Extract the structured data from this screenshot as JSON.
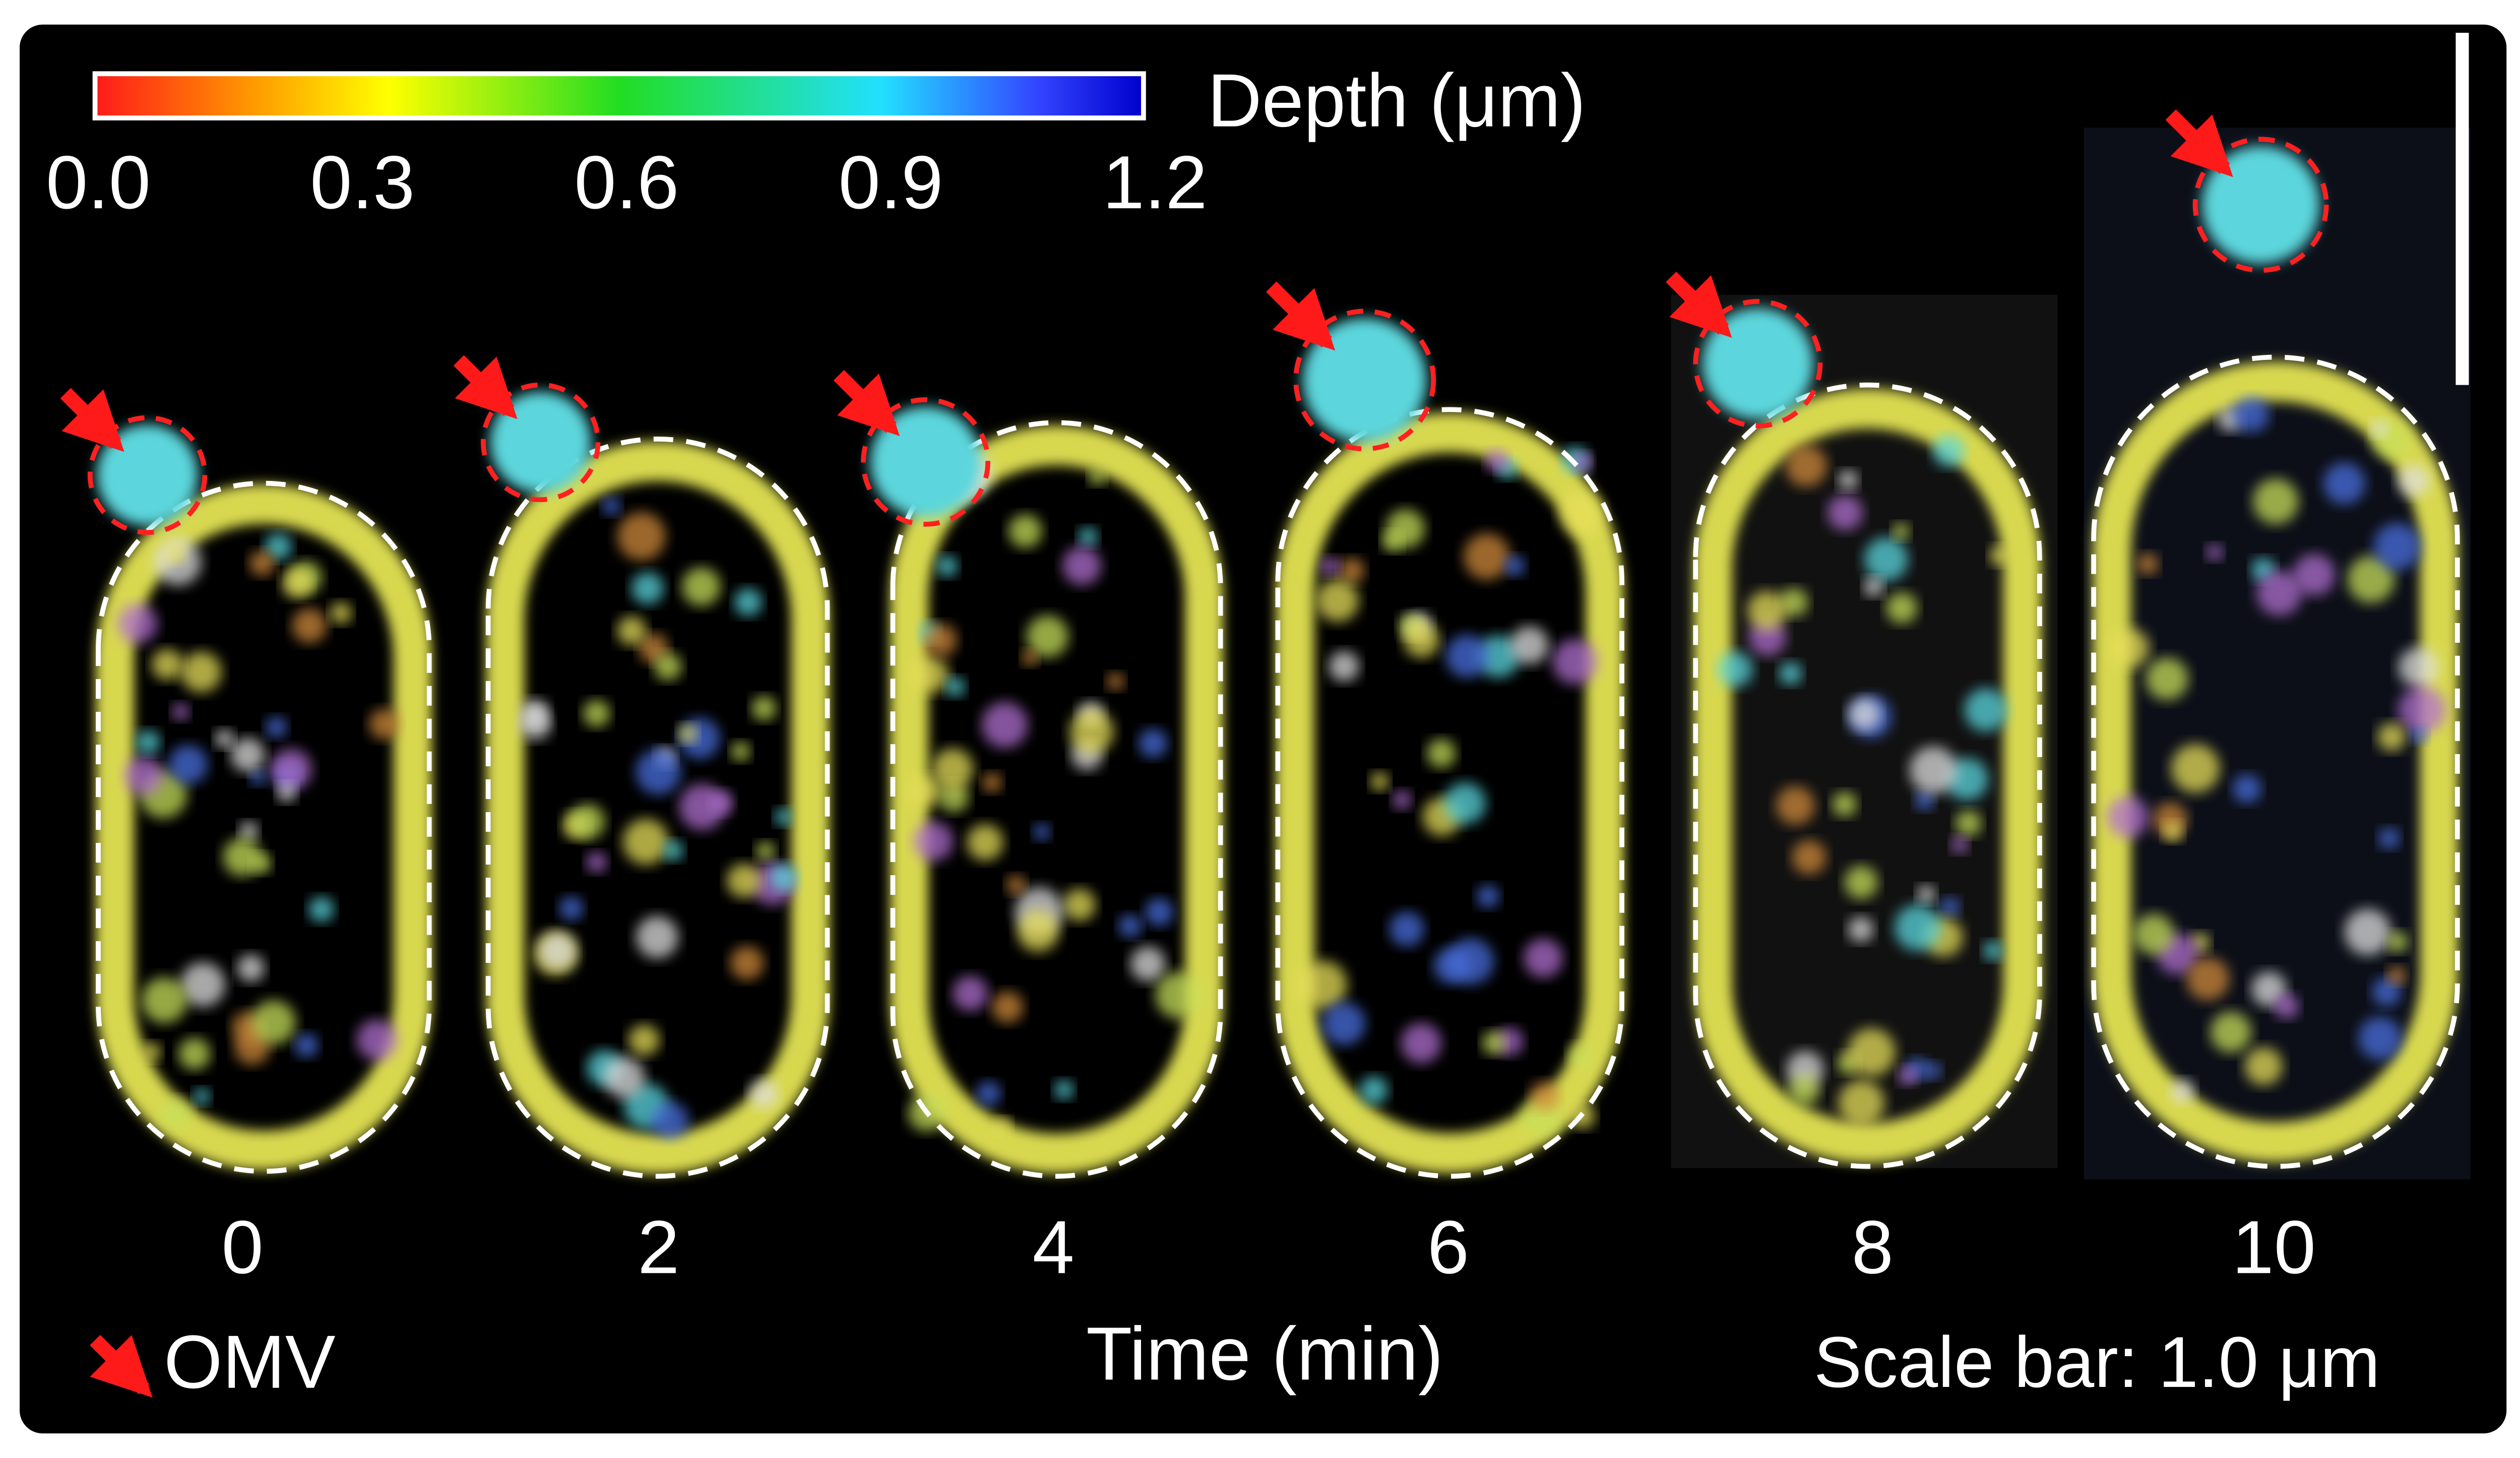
{
  "colorbar": {
    "label": "Depth (μm)",
    "ticks": [
      "0.0",
      "0.3",
      "0.6",
      "0.9",
      "1.2"
    ]
  },
  "panels": [
    {
      "time": 0
    },
    {
      "time": 2
    },
    {
      "time": 4
    },
    {
      "time": 6
    },
    {
      "time": 8
    },
    {
      "time": 10
    }
  ],
  "axis_label": "Time (min)",
  "legend": "OMV",
  "scale_bar": "Scale bar: 1.0 μm"
}
